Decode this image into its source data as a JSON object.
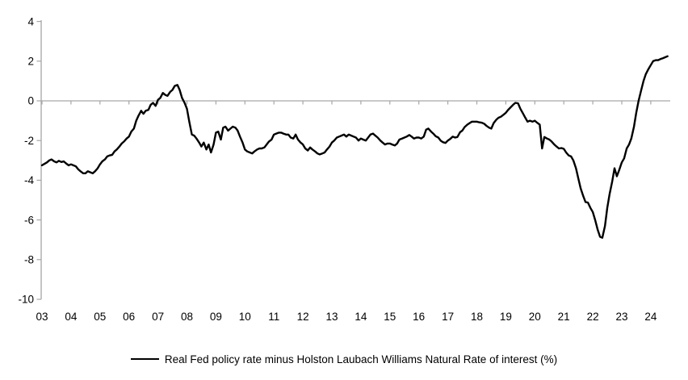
{
  "page": {
    "background": "#ffffff"
  },
  "chart_data": {
    "type": "line",
    "title": "",
    "legend_position": "bottom-center",
    "grid": "zero-baseline-only",
    "axis_color": "#A6A6A6",
    "line_color": "#000000",
    "x_axis": {
      "tick_labels": [
        "03",
        "04",
        "05",
        "06",
        "07",
        "08",
        "09",
        "10",
        "11",
        "12",
        "13",
        "14",
        "15",
        "16",
        "17",
        "18",
        "19",
        "20",
        "21",
        "22",
        "23",
        "24"
      ],
      "range_years": [
        2003,
        2024.7
      ]
    },
    "y_axis": {
      "ticks": [
        4,
        2,
        0,
        -2,
        -4,
        -6,
        -8,
        -10
      ],
      "range": [
        -10,
        4
      ]
    },
    "series": [
      {
        "name": "Real Fed policy rate minus Holston Laubach Williams Natural Rate of interest (%)",
        "color": "#000000",
        "points": [
          [
            2003.0,
            -3.25
          ],
          [
            2003.08,
            -3.18
          ],
          [
            2003.17,
            -3.1
          ],
          [
            2003.25,
            -3.0
          ],
          [
            2003.33,
            -2.95
          ],
          [
            2003.42,
            -3.05
          ],
          [
            2003.5,
            -3.1
          ],
          [
            2003.58,
            -3.02
          ],
          [
            2003.67,
            -3.08
          ],
          [
            2003.75,
            -3.05
          ],
          [
            2003.83,
            -3.15
          ],
          [
            2003.92,
            -3.25
          ],
          [
            2004.0,
            -3.2
          ],
          [
            2004.08,
            -3.25
          ],
          [
            2004.17,
            -3.3
          ],
          [
            2004.25,
            -3.45
          ],
          [
            2004.33,
            -3.55
          ],
          [
            2004.42,
            -3.65
          ],
          [
            2004.5,
            -3.65
          ],
          [
            2004.58,
            -3.55
          ],
          [
            2004.67,
            -3.6
          ],
          [
            2004.75,
            -3.65
          ],
          [
            2004.83,
            -3.55
          ],
          [
            2004.92,
            -3.4
          ],
          [
            2005.0,
            -3.2
          ],
          [
            2005.08,
            -3.05
          ],
          [
            2005.17,
            -2.95
          ],
          [
            2005.25,
            -2.8
          ],
          [
            2005.33,
            -2.75
          ],
          [
            2005.42,
            -2.72
          ],
          [
            2005.5,
            -2.55
          ],
          [
            2005.58,
            -2.45
          ],
          [
            2005.67,
            -2.3
          ],
          [
            2005.75,
            -2.15
          ],
          [
            2005.83,
            -2.05
          ],
          [
            2005.92,
            -1.9
          ],
          [
            2006.0,
            -1.8
          ],
          [
            2006.08,
            -1.55
          ],
          [
            2006.17,
            -1.4
          ],
          [
            2006.25,
            -1.0
          ],
          [
            2006.33,
            -0.75
          ],
          [
            2006.42,
            -0.5
          ],
          [
            2006.5,
            -0.65
          ],
          [
            2006.58,
            -0.5
          ],
          [
            2006.67,
            -0.45
          ],
          [
            2006.75,
            -0.2
          ],
          [
            2006.83,
            -0.1
          ],
          [
            2006.92,
            -0.25
          ],
          [
            2007.0,
            0.05
          ],
          [
            2007.08,
            0.15
          ],
          [
            2007.17,
            0.4
          ],
          [
            2007.25,
            0.3
          ],
          [
            2007.33,
            0.25
          ],
          [
            2007.42,
            0.45
          ],
          [
            2007.5,
            0.55
          ],
          [
            2007.58,
            0.75
          ],
          [
            2007.67,
            0.8
          ],
          [
            2007.75,
            0.55
          ],
          [
            2007.83,
            0.15
          ],
          [
            2007.92,
            -0.1
          ],
          [
            2008.0,
            -0.4
          ],
          [
            2008.08,
            -1.05
          ],
          [
            2008.17,
            -1.7
          ],
          [
            2008.25,
            -1.75
          ],
          [
            2008.33,
            -1.9
          ],
          [
            2008.42,
            -2.1
          ],
          [
            2008.5,
            -2.3
          ],
          [
            2008.58,
            -2.1
          ],
          [
            2008.67,
            -2.45
          ],
          [
            2008.75,
            -2.2
          ],
          [
            2008.83,
            -2.6
          ],
          [
            2008.92,
            -2.2
          ],
          [
            2009.0,
            -1.6
          ],
          [
            2009.08,
            -1.55
          ],
          [
            2009.17,
            -1.95
          ],
          [
            2009.25,
            -1.35
          ],
          [
            2009.33,
            -1.3
          ],
          [
            2009.42,
            -1.5
          ],
          [
            2009.5,
            -1.4
          ],
          [
            2009.58,
            -1.3
          ],
          [
            2009.67,
            -1.35
          ],
          [
            2009.75,
            -1.5
          ],
          [
            2009.83,
            -1.8
          ],
          [
            2009.92,
            -2.1
          ],
          [
            2010.0,
            -2.45
          ],
          [
            2010.08,
            -2.55
          ],
          [
            2010.17,
            -2.6
          ],
          [
            2010.25,
            -2.65
          ],
          [
            2010.33,
            -2.55
          ],
          [
            2010.42,
            -2.45
          ],
          [
            2010.5,
            -2.4
          ],
          [
            2010.58,
            -2.4
          ],
          [
            2010.67,
            -2.35
          ],
          [
            2010.75,
            -2.2
          ],
          [
            2010.83,
            -2.05
          ],
          [
            2010.92,
            -1.95
          ],
          [
            2011.0,
            -1.7
          ],
          [
            2011.08,
            -1.65
          ],
          [
            2011.17,
            -1.6
          ],
          [
            2011.25,
            -1.6
          ],
          [
            2011.33,
            -1.65
          ],
          [
            2011.42,
            -1.7
          ],
          [
            2011.5,
            -1.7
          ],
          [
            2011.58,
            -1.85
          ],
          [
            2011.67,
            -1.9
          ],
          [
            2011.75,
            -1.7
          ],
          [
            2011.83,
            -1.95
          ],
          [
            2011.92,
            -2.1
          ],
          [
            2012.0,
            -2.2
          ],
          [
            2012.08,
            -2.4
          ],
          [
            2012.17,
            -2.5
          ],
          [
            2012.25,
            -2.35
          ],
          [
            2012.33,
            -2.45
          ],
          [
            2012.42,
            -2.55
          ],
          [
            2012.5,
            -2.65
          ],
          [
            2012.58,
            -2.7
          ],
          [
            2012.67,
            -2.65
          ],
          [
            2012.75,
            -2.6
          ],
          [
            2012.83,
            -2.45
          ],
          [
            2012.92,
            -2.3
          ],
          [
            2013.0,
            -2.1
          ],
          [
            2013.08,
            -2.0
          ],
          [
            2013.17,
            -1.85
          ],
          [
            2013.25,
            -1.8
          ],
          [
            2013.33,
            -1.75
          ],
          [
            2013.42,
            -1.7
          ],
          [
            2013.5,
            -1.8
          ],
          [
            2013.58,
            -1.7
          ],
          [
            2013.67,
            -1.75
          ],
          [
            2013.75,
            -1.8
          ],
          [
            2013.83,
            -1.85
          ],
          [
            2013.92,
            -2.0
          ],
          [
            2014.0,
            -1.9
          ],
          [
            2014.08,
            -1.95
          ],
          [
            2014.17,
            -2.0
          ],
          [
            2014.25,
            -1.85
          ],
          [
            2014.33,
            -1.7
          ],
          [
            2014.42,
            -1.65
          ],
          [
            2014.5,
            -1.75
          ],
          [
            2014.58,
            -1.85
          ],
          [
            2014.67,
            -2.0
          ],
          [
            2014.75,
            -2.1
          ],
          [
            2014.83,
            -2.2
          ],
          [
            2014.92,
            -2.15
          ],
          [
            2015.0,
            -2.15
          ],
          [
            2015.08,
            -2.2
          ],
          [
            2015.17,
            -2.25
          ],
          [
            2015.25,
            -2.15
          ],
          [
            2015.33,
            -1.95
          ],
          [
            2015.42,
            -1.9
          ],
          [
            2015.5,
            -1.85
          ],
          [
            2015.58,
            -1.8
          ],
          [
            2015.67,
            -1.72
          ],
          [
            2015.75,
            -1.8
          ],
          [
            2015.83,
            -1.9
          ],
          [
            2015.92,
            -1.85
          ],
          [
            2016.0,
            -1.85
          ],
          [
            2016.08,
            -1.9
          ],
          [
            2016.17,
            -1.8
          ],
          [
            2016.25,
            -1.45
          ],
          [
            2016.33,
            -1.4
          ],
          [
            2016.42,
            -1.55
          ],
          [
            2016.5,
            -1.65
          ],
          [
            2016.58,
            -1.78
          ],
          [
            2016.67,
            -1.85
          ],
          [
            2016.75,
            -2.0
          ],
          [
            2016.83,
            -2.08
          ],
          [
            2016.92,
            -2.12
          ],
          [
            2017.0,
            -2.0
          ],
          [
            2017.08,
            -1.92
          ],
          [
            2017.17,
            -1.8
          ],
          [
            2017.25,
            -1.85
          ],
          [
            2017.33,
            -1.82
          ],
          [
            2017.42,
            -1.58
          ],
          [
            2017.5,
            -1.5
          ],
          [
            2017.58,
            -1.32
          ],
          [
            2017.67,
            -1.2
          ],
          [
            2017.75,
            -1.12
          ],
          [
            2017.83,
            -1.05
          ],
          [
            2017.92,
            -1.05
          ],
          [
            2018.0,
            -1.05
          ],
          [
            2018.08,
            -1.08
          ],
          [
            2018.17,
            -1.1
          ],
          [
            2018.25,
            -1.15
          ],
          [
            2018.33,
            -1.25
          ],
          [
            2018.42,
            -1.35
          ],
          [
            2018.5,
            -1.4
          ],
          [
            2018.58,
            -1.12
          ],
          [
            2018.67,
            -0.95
          ],
          [
            2018.75,
            -0.85
          ],
          [
            2018.83,
            -0.8
          ],
          [
            2018.92,
            -0.7
          ],
          [
            2019.0,
            -0.6
          ],
          [
            2019.08,
            -0.45
          ],
          [
            2019.17,
            -0.32
          ],
          [
            2019.25,
            -0.2
          ],
          [
            2019.33,
            -0.1
          ],
          [
            2019.42,
            -0.12
          ],
          [
            2019.5,
            -0.4
          ],
          [
            2019.58,
            -0.6
          ],
          [
            2019.67,
            -0.85
          ],
          [
            2019.75,
            -1.05
          ],
          [
            2019.83,
            -1.0
          ],
          [
            2019.92,
            -1.05
          ],
          [
            2020.0,
            -1.0
          ],
          [
            2020.08,
            -1.1
          ],
          [
            2020.17,
            -1.2
          ],
          [
            2020.25,
            -2.4
          ],
          [
            2020.33,
            -1.82
          ],
          [
            2020.42,
            -1.9
          ],
          [
            2020.5,
            -1.95
          ],
          [
            2020.58,
            -2.05
          ],
          [
            2020.67,
            -2.2
          ],
          [
            2020.75,
            -2.3
          ],
          [
            2020.83,
            -2.4
          ],
          [
            2020.92,
            -2.38
          ],
          [
            2021.0,
            -2.42
          ],
          [
            2021.08,
            -2.6
          ],
          [
            2021.17,
            -2.75
          ],
          [
            2021.25,
            -2.8
          ],
          [
            2021.33,
            -3.0
          ],
          [
            2021.42,
            -3.4
          ],
          [
            2021.5,
            -3.9
          ],
          [
            2021.58,
            -4.4
          ],
          [
            2021.67,
            -4.8
          ],
          [
            2021.75,
            -5.1
          ],
          [
            2021.83,
            -5.12
          ],
          [
            2021.92,
            -5.4
          ],
          [
            2022.0,
            -5.6
          ],
          [
            2022.08,
            -6.0
          ],
          [
            2022.17,
            -6.5
          ],
          [
            2022.25,
            -6.85
          ],
          [
            2022.33,
            -6.9
          ],
          [
            2022.42,
            -6.3
          ],
          [
            2022.5,
            -5.4
          ],
          [
            2022.58,
            -4.7
          ],
          [
            2022.67,
            -4.05
          ],
          [
            2022.75,
            -3.4
          ],
          [
            2022.83,
            -3.8
          ],
          [
            2022.92,
            -3.45
          ],
          [
            2023.0,
            -3.1
          ],
          [
            2023.08,
            -2.9
          ],
          [
            2023.17,
            -2.4
          ],
          [
            2023.25,
            -2.2
          ],
          [
            2023.33,
            -1.9
          ],
          [
            2023.42,
            -1.3
          ],
          [
            2023.5,
            -0.6
          ],
          [
            2023.58,
            0.0
          ],
          [
            2023.67,
            0.55
          ],
          [
            2023.75,
            1.0
          ],
          [
            2023.83,
            1.35
          ],
          [
            2023.92,
            1.6
          ],
          [
            2024.0,
            1.8
          ],
          [
            2024.08,
            2.0
          ],
          [
            2024.17,
            2.05
          ],
          [
            2024.25,
            2.05
          ],
          [
            2024.33,
            2.1
          ],
          [
            2024.42,
            2.15
          ],
          [
            2024.5,
            2.2
          ],
          [
            2024.58,
            2.25
          ]
        ]
      }
    ]
  }
}
